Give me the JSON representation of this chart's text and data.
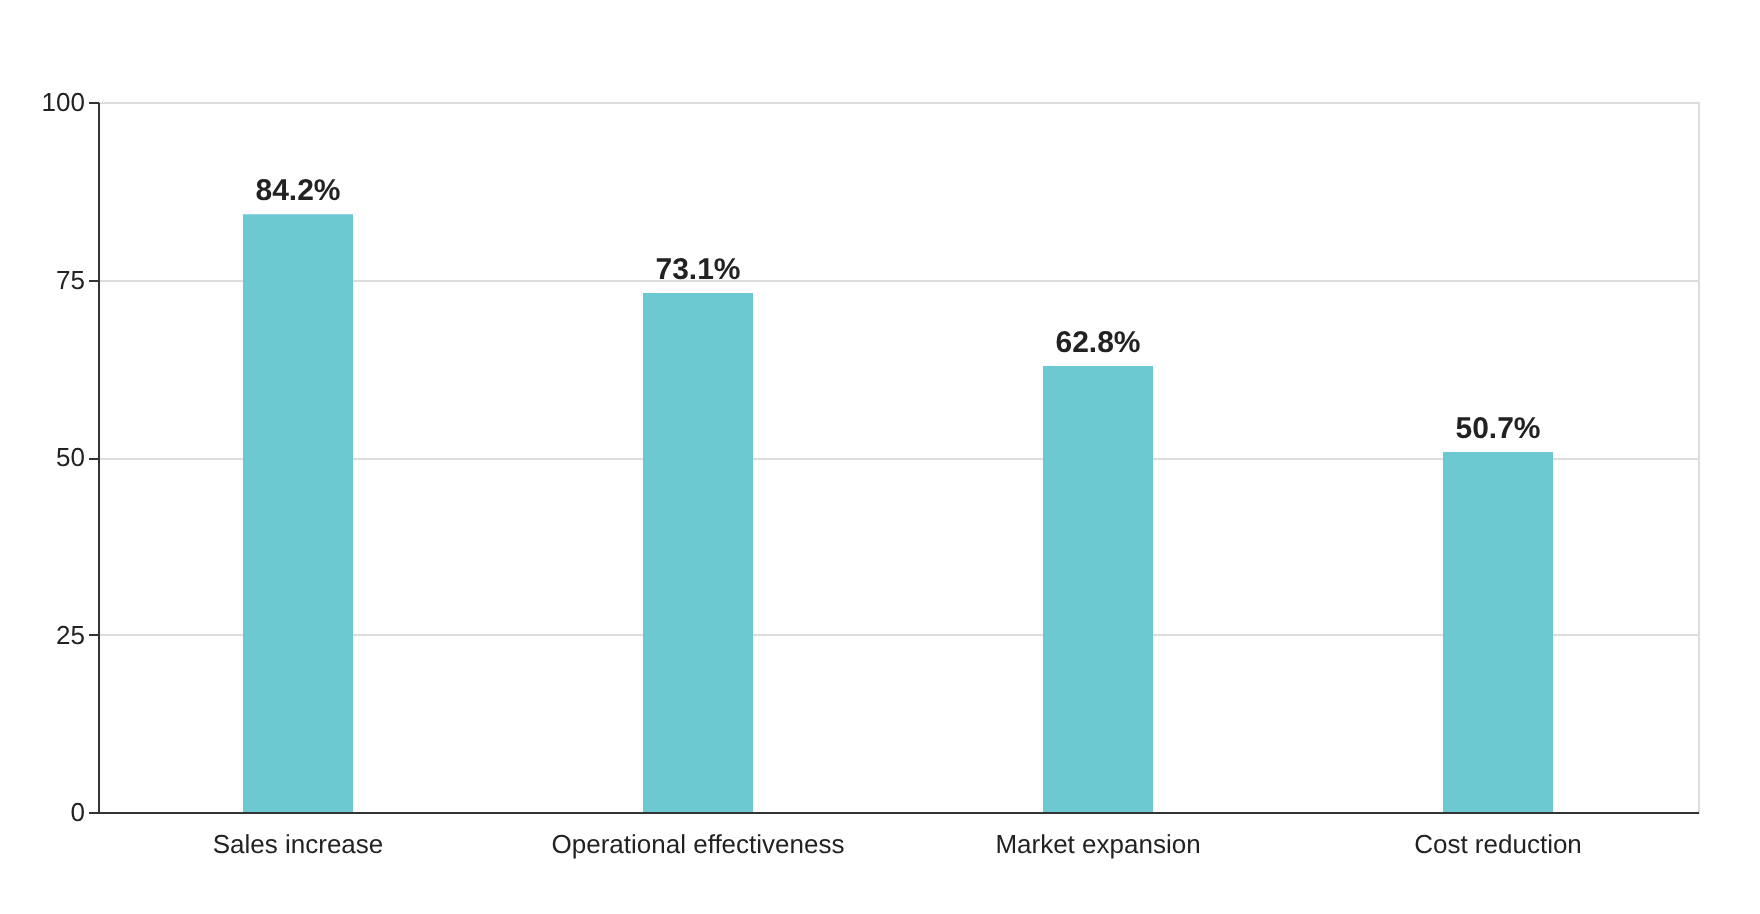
{
  "chart_data": {
    "type": "bar",
    "categories": [
      "Sales increase",
      "Operational effectiveness",
      "Market expansion",
      "Cost reduction"
    ],
    "values": [
      84.2,
      73.1,
      62.8,
      50.7
    ],
    "value_labels": [
      "84.2%",
      "73.1%",
      "62.8%",
      "50.7%"
    ],
    "color": "#6cc9d1",
    "ylim": [
      0,
      100
    ],
    "yticks": [
      0,
      25,
      50,
      75,
      100
    ],
    "grid": "y"
  }
}
